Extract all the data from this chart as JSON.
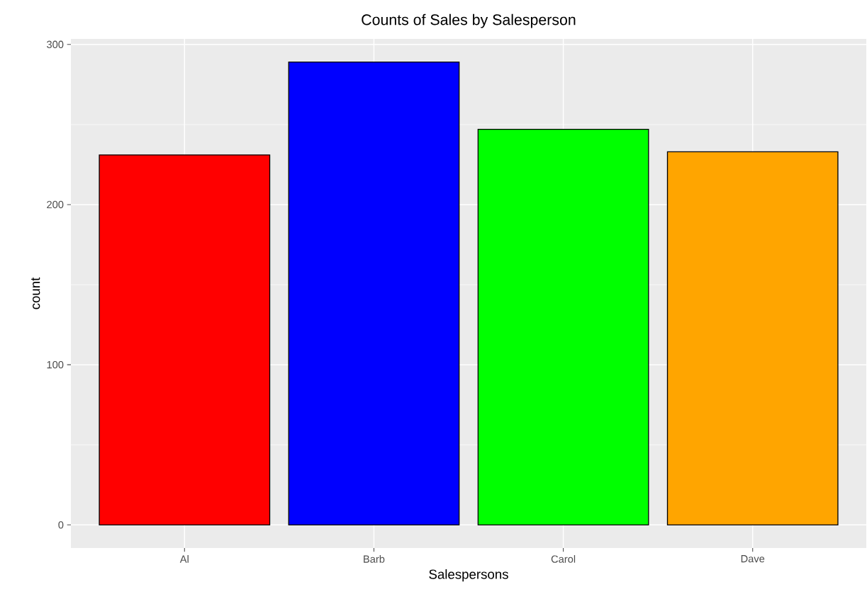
{
  "chart_data": {
    "type": "bar",
    "title": "Counts of Sales by Salesperson",
    "xlabel": "Salespersons",
    "ylabel": "count",
    "categories": [
      "Al",
      "Barb",
      "Carol",
      "Dave"
    ],
    "values": [
      231,
      289,
      247,
      233
    ],
    "colors": [
      "#ff0000",
      "#0000ff",
      "#00ff00",
      "#ffa500"
    ],
    "ylim": [
      -14.45,
      303.45
    ],
    "yticks": [
      0,
      100,
      200,
      300
    ],
    "grid": true
  }
}
